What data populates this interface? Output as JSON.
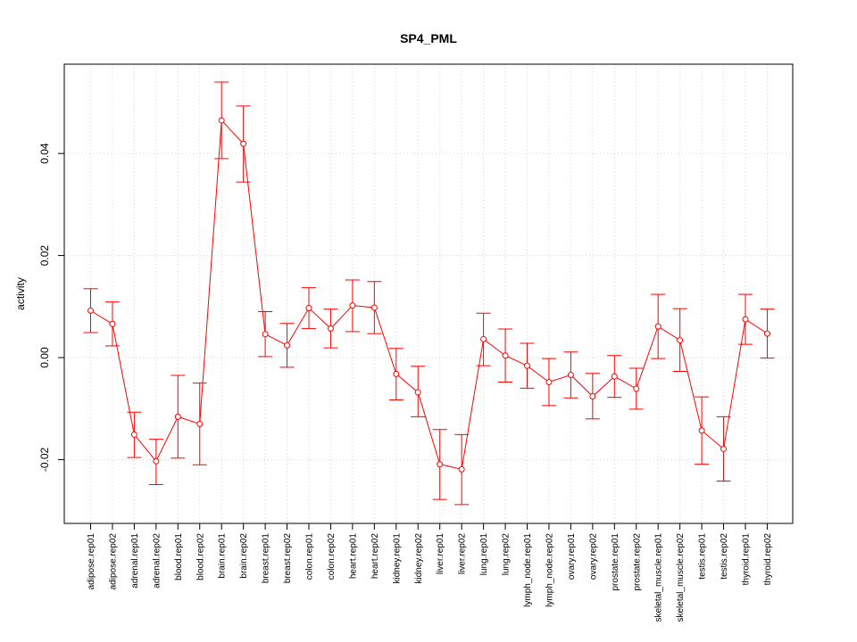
{
  "chart_data": {
    "type": "line",
    "title": "SP4_PML",
    "xlabel": "",
    "ylabel": "activity",
    "ylim": [
      -0.0325,
      0.0575
    ],
    "yticks": [
      -0.02,
      0.0,
      0.02,
      0.04
    ],
    "ytick_labels": [
      "-0.02",
      "0.00",
      "0.02",
      "0.04"
    ],
    "grid": "dotted",
    "series_color": "#ff0000",
    "categories": [
      "adipose.rep01",
      "adipose.rep02",
      "adrenal.rep01",
      "adrenal.rep02",
      "blood.rep01",
      "blood.rep02",
      "brain.rep01",
      "brain.rep02",
      "breast.rep01",
      "breast.rep02",
      "colon.rep01",
      "colon.rep02",
      "heart.rep01",
      "heart.rep02",
      "kidney.rep01",
      "kidney.rep02",
      "liver.rep01",
      "liver.rep02",
      "lung.rep01",
      "lung.rep02",
      "lymph_node.rep01",
      "lymph_node.rep02",
      "ovary.rep01",
      "ovary.rep02",
      "prostate.rep01",
      "prostate.rep02",
      "skeletal_muscle.rep01",
      "skeletal_muscle.rep02",
      "testis.rep01",
      "testis.rep02",
      "thyroid.rep01",
      "thyroid.rep02"
    ],
    "values": [
      0.0092,
      0.0066,
      -0.0151,
      -0.0203,
      -0.0116,
      -0.013,
      0.0465,
      0.0419,
      0.0046,
      0.0024,
      0.0097,
      0.0057,
      0.0102,
      0.0098,
      -0.0032,
      -0.0068,
      -0.0209,
      -0.0219,
      0.0036,
      0.0004,
      -0.0016,
      -0.0048,
      -0.0034,
      -0.0076,
      -0.0037,
      -0.0061,
      0.0061,
      0.0034,
      -0.0143,
      -0.0179,
      0.0075,
      0.0047
    ],
    "upper": [
      0.0135,
      0.0109,
      -0.0107,
      -0.016,
      -0.0035,
      -0.005,
      0.054,
      0.0493,
      0.009,
      0.0067,
      0.0137,
      0.0095,
      0.0152,
      0.0149,
      0.0018,
      -0.0017,
      -0.0141,
      -0.0151,
      0.0087,
      0.0056,
      0.0028,
      -0.0002,
      0.0011,
      -0.0031,
      0.0004,
      -0.0021,
      0.0124,
      0.0096,
      -0.0077,
      -0.0116,
      0.0124,
      0.0095
    ],
    "lower": [
      0.0049,
      0.0023,
      -0.0196,
      -0.0249,
      -0.0197,
      -0.021,
      0.039,
      0.0344,
      0.0002,
      -0.0019,
      0.0057,
      0.0019,
      0.0051,
      0.0047,
      -0.0083,
      -0.0116,
      -0.0278,
      -0.0288,
      -0.0016,
      -0.0048,
      -0.006,
      -0.0094,
      -0.0079,
      -0.012,
      -0.0078,
      -0.0101,
      -0.0002,
      -0.0027,
      -0.0209,
      -0.0242,
      0.0026,
      -0.0001
    ]
  }
}
